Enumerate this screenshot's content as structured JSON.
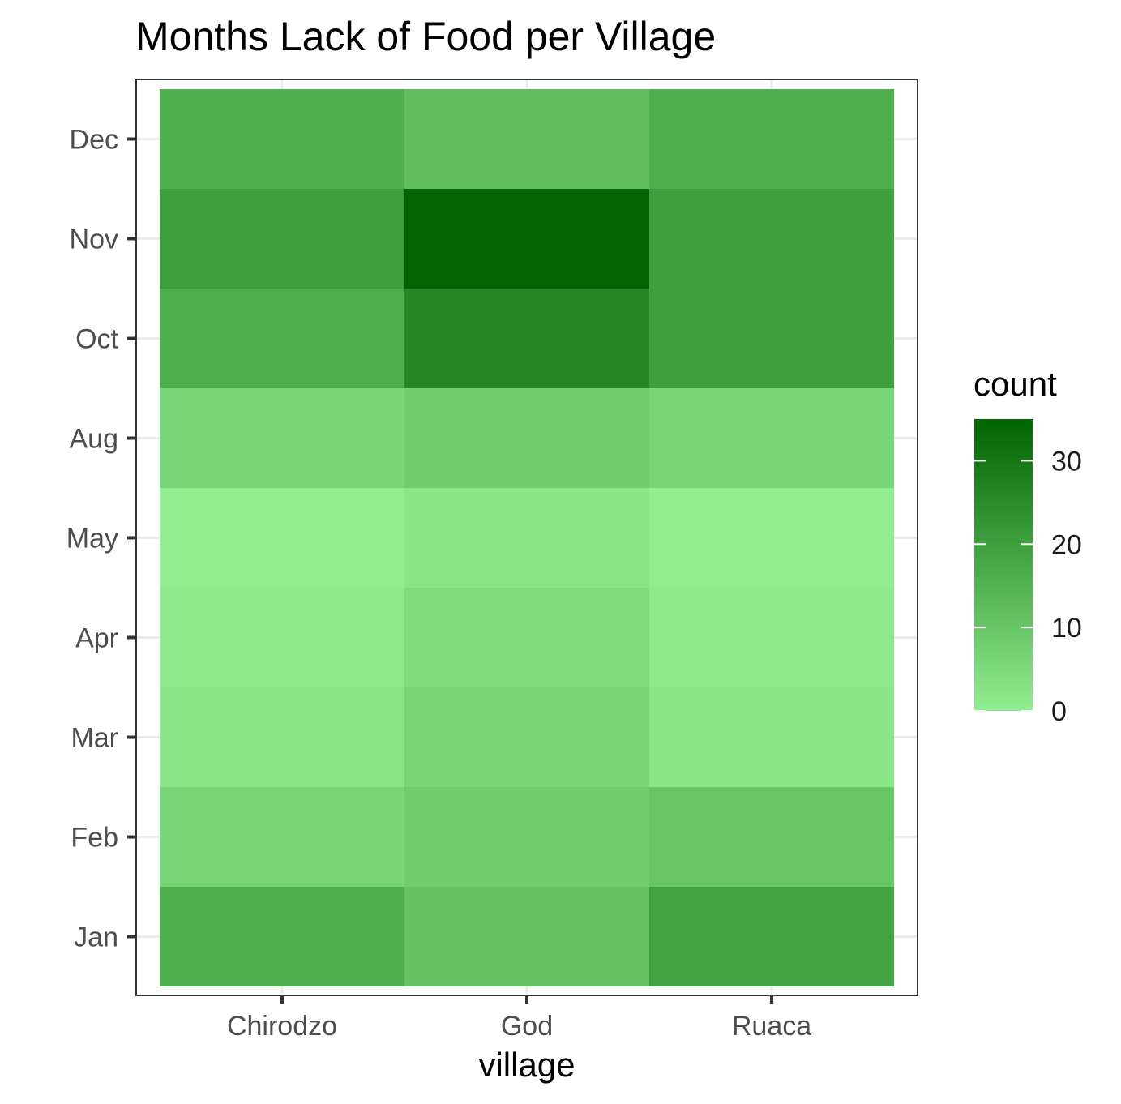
{
  "chart_data": {
    "type": "heatmap",
    "title": "Months Lack of Food per Village",
    "xlabel": "village",
    "ylabel": "",
    "x_categories": [
      "Chirodzo",
      "God",
      "Ruaca"
    ],
    "y_categories": [
      "Jan",
      "Feb",
      "Mar",
      "Apr",
      "May",
      "Aug",
      "Oct",
      "Nov",
      "Dec"
    ],
    "values": [
      [
        16,
        11,
        19
      ],
      [
        6,
        8,
        10
      ],
      [
        2,
        6,
        2
      ],
      [
        1,
        4,
        1
      ],
      [
        0,
        2,
        0
      ],
      [
        6,
        8,
        6
      ],
      [
        16,
        26,
        20
      ],
      [
        20,
        35,
        20
      ],
      [
        16,
        12,
        16
      ]
    ],
    "legend": {
      "title": "count",
      "ticks": [
        0,
        10,
        20,
        30
      ],
      "tick_labels": [
        "0",
        "10",
        "20",
        "30"
      ],
      "min": 0,
      "max": 35,
      "low_color": "#90ee90",
      "high_color": "#006400",
      "placement": "right"
    },
    "grid": true,
    "theme": "bw"
  }
}
